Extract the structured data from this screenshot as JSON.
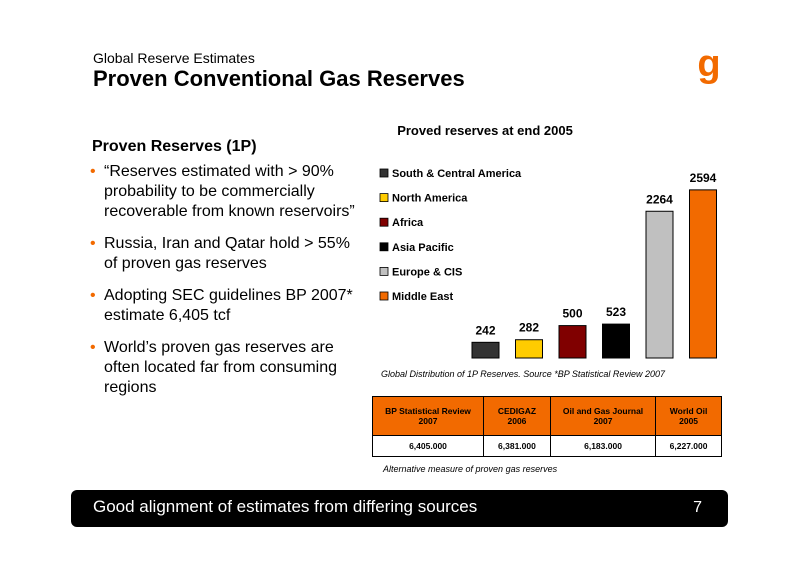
{
  "header": {
    "subtitle": "Global Reserve Estimates",
    "title": "Proven Conventional Gas Reserves",
    "logo_glyph": "g"
  },
  "left": {
    "heading": "Proven Reserves (1P)",
    "bullets": [
      "“Reserves estimated with > 90% probability to be commercially recoverable from known reservoirs”",
      "Russia, Iran and Qatar hold > 55% of proven gas reserves",
      "Adopting SEC guidelines BP 2007* estimate 6,405 tcf",
      "World’s proven gas reserves are often located far from consuming regions"
    ]
  },
  "chart_data": {
    "type": "bar",
    "title": "Proved reserves at end 2005",
    "categories": [
      "South & Central America",
      "North America",
      "Africa",
      "Asia Pacific",
      "Europe & CIS",
      "Middle East"
    ],
    "values": [
      242,
      282,
      500,
      523,
      2264,
      2594
    ],
    "colors": [
      "#333333",
      "#ffcc00",
      "#800000",
      "#000000",
      "#c0c0c0",
      "#f26a00"
    ],
    "legend_position": "left",
    "grid": false,
    "ylim": [
      0,
      2700
    ]
  },
  "caption": "Global Distribution of 1P Reserves.  Source *BP Statistical Review 2007",
  "estimates": {
    "headers": [
      "BP Statistical Review 2007",
      "CEDIGAZ 2006",
      "Oil and Gas Journal 2007",
      "World Oil 2005"
    ],
    "values": [
      "6,405.000",
      "6,381.000",
      "6,183.000",
      "6,227.000"
    ],
    "header_color": "#f26a00"
  },
  "alt_note": "Alternative measure of proven gas reserves",
  "footer": {
    "message": "Good alignment of estimates from differing sources",
    "page_number": "7"
  },
  "colors": {
    "accent": "#f26a00"
  }
}
